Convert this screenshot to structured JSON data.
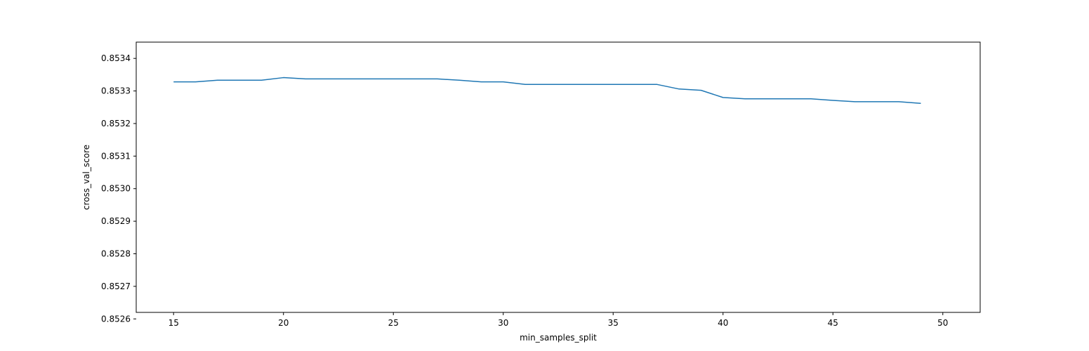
{
  "chart_data": {
    "type": "line",
    "title": "",
    "xlabel": "min_samples_split",
    "ylabel": "cross_val_score",
    "xlim": [
      13.3,
      51.7
    ],
    "ylim": [
      0.85262,
      0.85345
    ],
    "x_ticks": [
      15,
      20,
      25,
      30,
      35,
      40,
      45,
      50
    ],
    "x_tick_labels": [
      "15",
      "20",
      "25",
      "30",
      "35",
      "40",
      "45",
      "50"
    ],
    "y_ticks": [
      0.8527,
      0.8528,
      0.8529,
      0.853,
      0.8531,
      0.8532,
      0.8533,
      0.8534,
      0.8526
    ],
    "y_tick_labels": [
      "0.8527",
      "0.8528",
      "0.8529",
      "0.8530",
      "0.8531",
      "0.8532",
      "0.8533",
      "0.8534",
      "0.8526"
    ],
    "grid": false,
    "legend": null,
    "line_color": "#1f77b4",
    "series": [
      {
        "x": [
          15,
          16,
          17,
          18,
          19,
          20,
          21,
          22,
          23,
          24,
          25,
          26,
          27,
          28,
          29,
          30,
          31,
          32,
          33,
          34,
          35,
          36,
          37,
          38,
          39,
          40,
          41,
          42,
          43,
          44,
          45,
          46,
          47,
          48,
          49
        ],
        "values": [
          0.853328,
          0.853328,
          0.853333,
          0.853333,
          0.853333,
          0.853341,
          0.853337,
          0.853337,
          0.853337,
          0.853337,
          0.853337,
          0.853337,
          0.853337,
          0.853333,
          0.853328,
          0.853328,
          0.85332,
          0.85332,
          0.85332,
          0.85332,
          0.85332,
          0.85332,
          0.85332,
          0.853306,
          0.853302,
          0.85328,
          0.853276,
          0.853276,
          0.853276,
          0.853276,
          0.853271,
          0.853267,
          0.853267,
          0.853267,
          0.853262
        ]
      }
    ]
  }
}
